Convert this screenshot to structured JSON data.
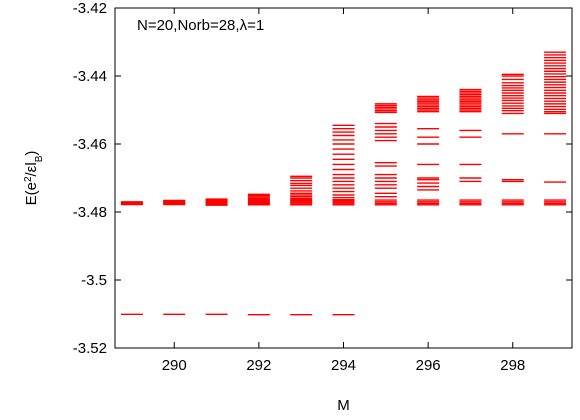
{
  "chart_data": {
    "type": "scatter",
    "marker": "horizontal-dash",
    "color": "#ff0000",
    "annotation": "N=20,Norb=28,λ=1",
    "xlabel": "M",
    "ylabel_parts": {
      "base": "E(e",
      "sup": "2",
      "mid": "/εl",
      "sub": "B",
      "end": ")"
    },
    "xlim": [
      288.6,
      299.4
    ],
    "ylim": [
      -3.52,
      -3.42
    ],
    "xticks": [
      290,
      292,
      294,
      296,
      298
    ],
    "xtick_labels": [
      "290",
      "292",
      "294",
      "296",
      "298"
    ],
    "yticks": [
      -3.52,
      -3.5,
      -3.48,
      -3.46,
      -3.44,
      -3.42
    ],
    "ytick_labels": [
      "-3.52",
      "-3.5",
      "-3.48",
      "-3.46",
      "-3.44",
      "-3.42"
    ],
    "grid": false,
    "x": [
      289,
      290,
      291,
      292,
      293,
      294,
      295,
      296,
      297,
      298,
      299
    ],
    "levels": [
      [
        -3.5101,
        -3.477,
        -3.4772,
        -3.4774,
        -3.4776,
        -3.4778
      ],
      [
        -3.5101,
        -3.4766,
        -3.4768,
        -3.477,
        -3.4772,
        -3.4774,
        -3.4776,
        -3.4778
      ],
      [
        -3.5101,
        -3.4762,
        -3.4765,
        -3.4768,
        -3.4771,
        -3.4774,
        -3.4776,
        -3.4778,
        -3.478
      ],
      [
        -3.5102,
        -3.4748,
        -3.4752,
        -3.4756,
        -3.476,
        -3.4764,
        -3.4767,
        -3.477,
        -3.4773,
        -3.4776,
        -3.4779
      ],
      [
        -3.5102,
        -3.4695,
        -3.47,
        -3.4708,
        -3.4716,
        -3.4722,
        -3.473,
        -3.4738,
        -3.4745,
        -3.475,
        -3.4755,
        -3.476,
        -3.4764,
        -3.4768,
        -3.4772,
        -3.4776,
        -3.4779
      ],
      [
        -3.5102,
        -3.4545,
        -3.4555,
        -3.4565,
        -3.4575,
        -3.4588,
        -3.46,
        -3.4615,
        -3.463,
        -3.4645,
        -3.466,
        -3.4675,
        -3.469,
        -3.47,
        -3.471,
        -3.472,
        -3.473,
        -3.474,
        -3.475,
        -3.4758,
        -3.4764,
        -3.4768,
        -3.4772,
        -3.4776,
        -3.4779
      ],
      [
        -3.4482,
        -3.4487,
        -3.4492,
        -3.4497,
        -3.4502,
        -3.4507,
        -3.454,
        -3.455,
        -3.456,
        -3.457,
        -3.458,
        -3.459,
        -3.4655,
        -3.4665,
        -3.469,
        -3.47,
        -3.471,
        -3.472,
        -3.473,
        -3.4745,
        -3.4755,
        -3.4765,
        -3.477,
        -3.4775,
        -3.4779
      ],
      [
        -3.446,
        -3.4465,
        -3.447,
        -3.4475,
        -3.448,
        -3.4485,
        -3.449,
        -3.4495,
        -3.45,
        -3.4505,
        -3.4555,
        -3.458,
        -3.46,
        -3.466,
        -3.47,
        -3.4705,
        -3.4715,
        -3.4725,
        -3.4735,
        -3.4765,
        -3.477,
        -3.4775,
        -3.4779
      ],
      [
        -3.444,
        -3.4445,
        -3.445,
        -3.4455,
        -3.446,
        -3.4465,
        -3.447,
        -3.4475,
        -3.448,
        -3.4485,
        -3.449,
        -3.4495,
        -3.45,
        -3.4505,
        -3.456,
        -3.458,
        -3.466,
        -3.47,
        -3.471,
        -3.4765,
        -3.477,
        -3.4775,
        -3.4779
      ],
      [
        -3.4395,
        -3.44,
        -3.441,
        -3.442,
        -3.4428,
        -3.4435,
        -3.4442,
        -3.445,
        -3.4458,
        -3.4465,
        -3.4472,
        -3.448,
        -3.4488,
        -3.4495,
        -3.4502,
        -3.451,
        -3.457,
        -3.4705,
        -3.471,
        -3.4765,
        -3.477,
        -3.4775,
        -3.4779
      ],
      [
        -3.433,
        -3.4338,
        -3.4346,
        -3.4354,
        -3.4362,
        -3.437,
        -3.4378,
        -3.4386,
        -3.4394,
        -3.4402,
        -3.441,
        -3.4418,
        -3.4426,
        -3.4434,
        -3.4442,
        -3.445,
        -3.4458,
        -3.4466,
        -3.4474,
        -3.4482,
        -3.449,
        -3.4498,
        -3.4505,
        -3.451,
        -3.457,
        -3.4712,
        -3.4765,
        -3.477,
        -3.4775,
        -3.4779
      ]
    ]
  }
}
